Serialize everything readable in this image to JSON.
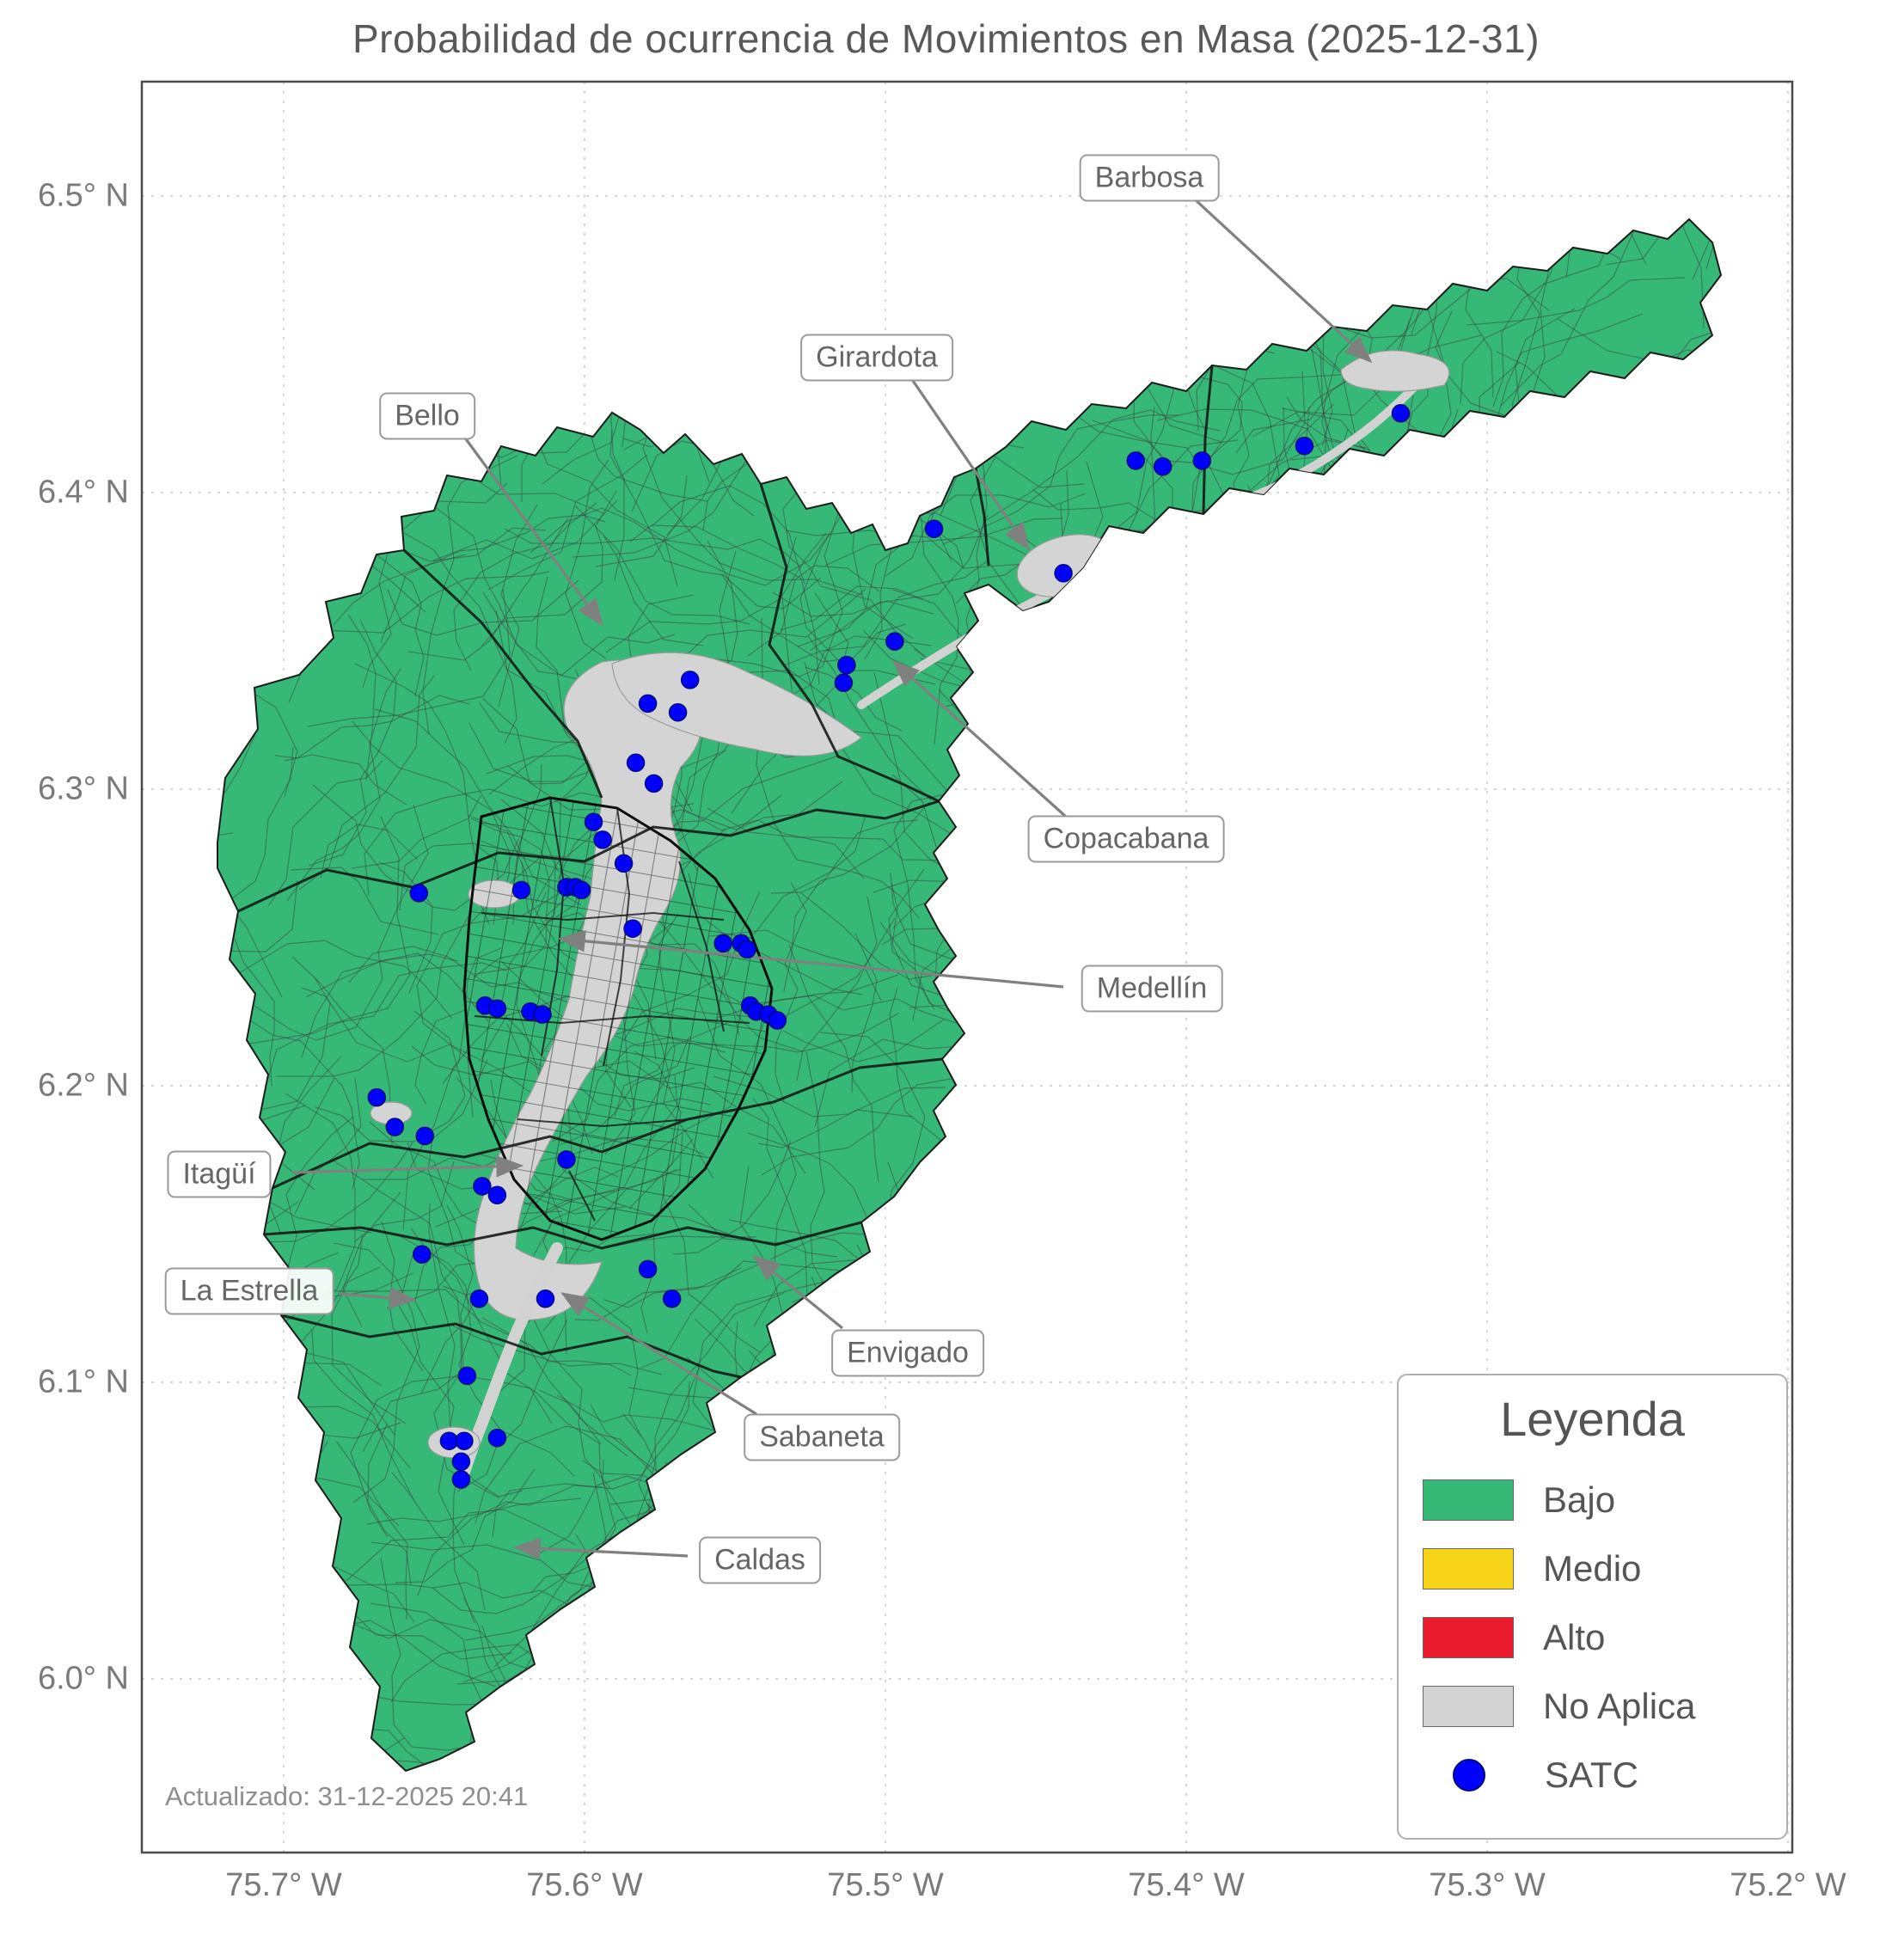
{
  "title": "Probabilidad de ocurrencia de Movimientos en Masa (2025-12-31)",
  "updated": "Actualizado: 31-12-2025 20:41",
  "axes": {
    "x_ticks": [
      "75.7° W",
      "75.6° W",
      "75.5° W",
      "75.4° W",
      "75.3° W",
      "75.2° W"
    ],
    "y_ticks": [
      "6.5° N",
      "6.4° N",
      "6.3° N",
      "6.2° N",
      "6.1° N",
      "6.0° N"
    ],
    "lon_w_range": [
      75.747,
      75.199
    ],
    "lat_n_range": [
      6.539,
      5.941
    ]
  },
  "legend": {
    "title": "Leyenda",
    "items": [
      {
        "label": "Bajo",
        "color": "#36B877",
        "marker": "swatch"
      },
      {
        "label": "Medio",
        "color": "#F7D417",
        "marker": "swatch"
      },
      {
        "label": "Alto",
        "color": "#EA1B2D",
        "marker": "swatch"
      },
      {
        "label": "No Aplica",
        "color": "#D3D3D3",
        "marker": "swatch"
      },
      {
        "label": "SATC",
        "color": "#0000FF",
        "marker": "dot"
      }
    ]
  },
  "annotations": [
    {
      "label": "Barbosa"
    },
    {
      "label": "Girardota"
    },
    {
      "label": "Bello"
    },
    {
      "label": "Copacabana"
    },
    {
      "label": "Medellín"
    },
    {
      "label": "Itagüí"
    },
    {
      "label": "La Estrella"
    },
    {
      "label": "Envigado"
    },
    {
      "label": "Sabaneta"
    },
    {
      "label": "Caldas"
    }
  ],
  "satc_points": [
    [
      75.329,
      6.427
    ],
    [
      75.361,
      6.416
    ],
    [
      75.395,
      6.411
    ],
    [
      75.408,
      6.409
    ],
    [
      75.417,
      6.411
    ],
    [
      75.484,
      6.388
    ],
    [
      75.441,
      6.373
    ],
    [
      75.497,
      6.35
    ],
    [
      75.513,
      6.342
    ],
    [
      75.514,
      6.336
    ],
    [
      75.565,
      6.337
    ],
    [
      75.579,
      6.329
    ],
    [
      75.569,
      6.326
    ],
    [
      75.583,
      6.309
    ],
    [
      75.577,
      6.302
    ],
    [
      75.597,
      6.289
    ],
    [
      75.594,
      6.283
    ],
    [
      75.587,
      6.275
    ],
    [
      75.655,
      6.265
    ],
    [
      75.621,
      6.266
    ],
    [
      75.606,
      6.267
    ],
    [
      75.603,
      6.267
    ],
    [
      75.601,
      6.266
    ],
    [
      75.584,
      6.253
    ],
    [
      75.554,
      6.248
    ],
    [
      75.548,
      6.248
    ],
    [
      75.546,
      6.246
    ],
    [
      75.633,
      6.227
    ],
    [
      75.629,
      6.226
    ],
    [
      75.618,
      6.225
    ],
    [
      75.614,
      6.224
    ],
    [
      75.545,
      6.227
    ],
    [
      75.543,
      6.225
    ],
    [
      75.539,
      6.224
    ],
    [
      75.536,
      6.222
    ],
    [
      75.669,
      6.196
    ],
    [
      75.663,
      6.186
    ],
    [
      75.653,
      6.183
    ],
    [
      75.606,
      6.175
    ],
    [
      75.634,
      6.166
    ],
    [
      75.629,
      6.163
    ],
    [
      75.654,
      6.143
    ],
    [
      75.579,
      6.138
    ],
    [
      75.571,
      6.128
    ],
    [
      75.635,
      6.128
    ],
    [
      75.613,
      6.128
    ],
    [
      75.639,
      6.102
    ],
    [
      75.645,
      6.08
    ],
    [
      75.64,
      6.08
    ],
    [
      75.629,
      6.081
    ],
    [
      75.641,
      6.073
    ],
    [
      75.641,
      6.067
    ]
  ]
}
